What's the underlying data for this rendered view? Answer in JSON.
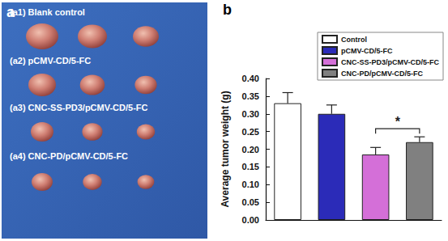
{
  "photo": {
    "label": "a",
    "rows": [
      "(a1) Blank control",
      "(a2) pCMV-CD/5-FC",
      "(a3) CNC-SS-PD3/pCMV-CD/5-FC",
      "(a4) CNC-PD/pCMV-CD/5-FC"
    ]
  },
  "chart_label": "b",
  "chart_data": {
    "type": "bar",
    "categories": [
      null,
      null,
      null,
      null
    ],
    "series": [
      {
        "name": "Control",
        "color": "#ffffff",
        "values": [
          0.33,
          null,
          null,
          null
        ],
        "errors": [
          0.03,
          null,
          null,
          null
        ]
      },
      {
        "name": "pCMV-CD/5-FC",
        "color": "#2b2bb8",
        "values": [
          null,
          0.3,
          null,
          null
        ],
        "errors": [
          null,
          0.025,
          null,
          null
        ]
      },
      {
        "name": "CNC-SS-PD3/pCMV-CD/5-FC",
        "color": "#d46fd8",
        "values": [
          null,
          null,
          0.185,
          null
        ],
        "errors": [
          null,
          null,
          0.02,
          null
        ]
      },
      {
        "name": "CNC-PD/pCMV-CD/5-FC",
        "color": "#808080",
        "values": [
          null,
          null,
          null,
          0.22
        ],
        "errors": [
          null,
          null,
          null,
          0.015
        ]
      }
    ],
    "ylabel": "Average tumor weight (g)",
    "ylim": [
      0,
      0.4
    ],
    "yticks": [
      {
        "value": 0,
        "label": "0.00"
      },
      {
        "value": 0.05,
        "label": "0.05"
      },
      {
        "value": 0.1,
        "label": "0.10"
      },
      {
        "value": 0.15,
        "label": "0.15"
      },
      {
        "value": 0.2,
        "label": "0.20"
      },
      {
        "value": 0.25,
        "label": "0.25"
      },
      {
        "value": 0.3,
        "label": "0.30"
      },
      {
        "value": 0.35,
        "label": "0.35"
      },
      {
        "value": 0.4,
        "label": "0.40"
      }
    ],
    "legend": "upper right",
    "tick_labels": "y",
    "grid": false,
    "annotations": [
      {
        "text": "*",
        "between": [
          "CNC-SS-PD3/pCMV-CD/5-FC",
          "CNC-PD/pCMV-CD/5-FC"
        ]
      }
    ]
  }
}
